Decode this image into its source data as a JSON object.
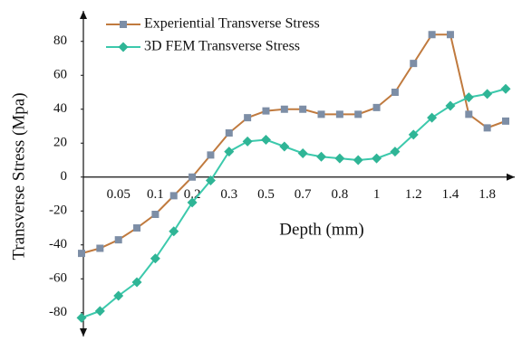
{
  "chart_data": {
    "type": "line",
    "categories": [
      null,
      null,
      "0.05",
      null,
      "0.1",
      null,
      "0.2",
      null,
      "0.3",
      null,
      "0.5",
      null,
      "0.7",
      null,
      "0.8",
      null,
      "1",
      null,
      "1.2",
      null,
      "1.4",
      null,
      "1.8",
      null
    ],
    "x_label": "Depth (mm)",
    "y_label": "Transverse Stress (Mpa)",
    "ylim": [
      -94,
      98
    ],
    "yticks": [
      -80,
      -60,
      -40,
      -20,
      0,
      20,
      40,
      60,
      80
    ],
    "grid": false,
    "legend": "top-left",
    "series": [
      {
        "name": "Experiential Transverse Stress",
        "color": "#c07a3e",
        "marker": "square",
        "marker_color": "#7d8ea6",
        "values": [
          -45,
          -42,
          -37,
          -30,
          -22,
          -11,
          0,
          13,
          26,
          35,
          39,
          40,
          40,
          37,
          37,
          37,
          41,
          50,
          67,
          84,
          84,
          37,
          29,
          33
        ]
      },
      {
        "name": "3D FEM Transverse Stress",
        "color": "#3cc9ac",
        "marker": "diamond",
        "marker_color": "#2fb596",
        "values": [
          -83,
          -79,
          -70,
          -62,
          -48,
          -32,
          -15,
          -2,
          15,
          21,
          22,
          18,
          14,
          12,
          11,
          10,
          11,
          15,
          25,
          35,
          42,
          47,
          49,
          52
        ]
      }
    ]
  }
}
